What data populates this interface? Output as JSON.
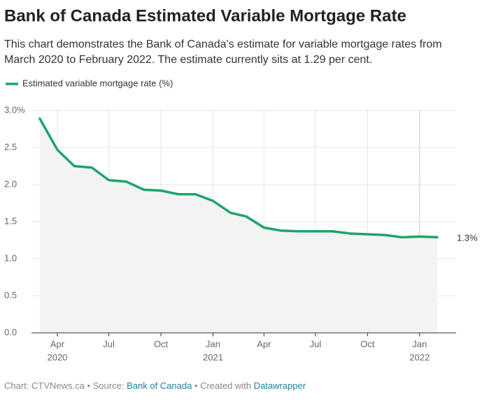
{
  "chart_data": {
    "type": "line",
    "title": "Bank of Canada Estimated Variable Mortgage Rate",
    "subtitle": [
      "This chart demonstrates the Bank of Canada's estimate for variable mortgage rates from",
      "March 2020 to February 2022. The estimate currently sits at 1.29 per cent."
    ],
    "x": [
      "2020-03",
      "2020-04",
      "2020-05",
      "2020-06",
      "2020-07",
      "2020-08",
      "2020-09",
      "2020-10",
      "2020-11",
      "2020-12",
      "2021-01",
      "2021-02",
      "2021-03",
      "2021-04",
      "2021-05",
      "2021-06",
      "2021-07",
      "2021-08",
      "2021-09",
      "2021-10",
      "2021-11",
      "2021-12",
      "2022-01",
      "2022-02"
    ],
    "series": [
      {
        "name": "Estimated variable mortgage rate (%)",
        "color": "#1fa46a",
        "values": [
          2.89,
          2.47,
          2.25,
          2.23,
          2.06,
          2.04,
          1.93,
          1.92,
          1.87,
          1.87,
          1.78,
          1.62,
          1.57,
          1.42,
          1.38,
          1.37,
          1.37,
          1.37,
          1.34,
          1.33,
          1.32,
          1.29,
          1.3,
          1.29
        ],
        "value_labels": [
          null,
          null,
          null,
          null,
          null,
          null,
          null,
          null,
          null,
          null,
          null,
          null,
          null,
          null,
          null,
          null,
          null,
          null,
          null,
          null,
          null,
          null,
          null,
          "1.3%"
        ]
      }
    ],
    "xlim": [
      "2020-02",
      "2022-03"
    ],
    "xticks": [
      {
        "value": "2020-04",
        "label": "Apr"
      },
      {
        "value": "2020-07",
        "label": "Jul"
      },
      {
        "value": "2020-10",
        "label": "Oct"
      },
      {
        "value": "2021-01",
        "label": "Jan"
      },
      {
        "value": "2021-04",
        "label": "Apr"
      },
      {
        "value": "2021-07",
        "label": "Jul"
      },
      {
        "value": "2021-10",
        "label": "Oct"
      },
      {
        "value": "2022-01",
        "label": "Jan"
      }
    ],
    "xtick_years": [
      {
        "value": "2020-04",
        "label": "2020"
      },
      {
        "value": "2021-01",
        "label": "2021"
      },
      {
        "value": "2022-01",
        "label": "2022"
      }
    ],
    "ylim": [
      0,
      3
    ],
    "yticks": [
      {
        "value": 0,
        "label": "0.0"
      },
      {
        "value": 0.5,
        "label": "0.5"
      },
      {
        "value": 1,
        "label": "1.0"
      },
      {
        "value": 1.5,
        "label": "1.5"
      },
      {
        "value": 2,
        "label": "2.0"
      },
      {
        "value": 2.5,
        "label": "2.5"
      },
      {
        "value": 3,
        "label": "3.0%"
      }
    ],
    "grid": true,
    "area_fill": "#f3f3f3",
    "footer": {
      "prefix": "Chart: CTVNews.ca • Source: ",
      "source": "Bank of Canada",
      "middle": " • Created with ",
      "tool": "Datawrapper"
    }
  }
}
